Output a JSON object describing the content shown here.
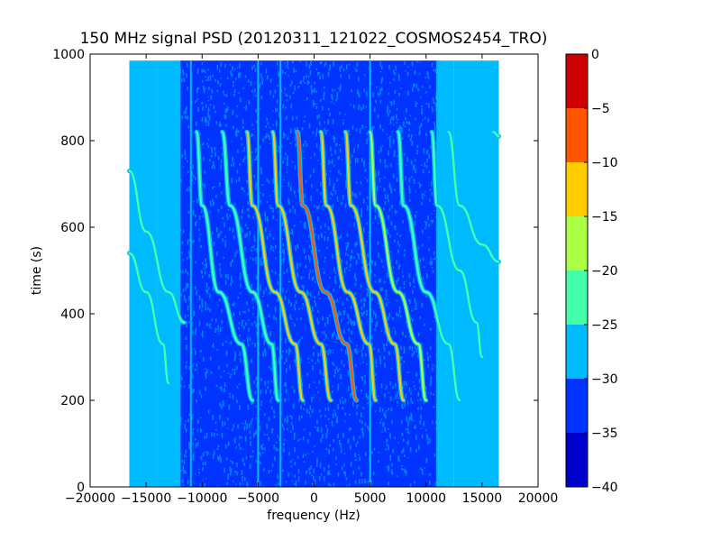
{
  "chart_data": {
    "type": "heatmap",
    "title": "150 MHz signal PSD (20120311_121022_COSMOS2454_TRO)",
    "xlabel": "frequency (Hz)",
    "ylabel": "time (s)",
    "xlim": [
      -20000,
      20000
    ],
    "ylim": [
      0,
      1000
    ],
    "xticks": [
      -20000,
      -15000,
      -10000,
      -5000,
      0,
      5000,
      10000,
      15000,
      20000
    ],
    "xtick_labels": [
      "−20000",
      "−15000",
      "−10000",
      "−5000",
      "0",
      "5000",
      "10000",
      "15000",
      "20000"
    ],
    "yticks": [
      0,
      200,
      400,
      600,
      800,
      1000
    ],
    "ytick_labels": [
      "0",
      "200",
      "400",
      "600",
      "800",
      "1000"
    ],
    "data_extent": {
      "x": [
        -16500,
        16500
      ],
      "y": [
        0,
        985
      ]
    },
    "colorbar": {
      "min": -40,
      "max": 0,
      "ticks": [
        0,
        -5,
        -10,
        -15,
        -20,
        -25,
        -30,
        -35,
        -40
      ],
      "tick_labels": [
        "0",
        "−5",
        "−10",
        "−15",
        "−20",
        "−25",
        "−30",
        "−35",
        "−40"
      ],
      "bands": [
        {
          "from": -40,
          "to": -35,
          "color": "#0000cc"
        },
        {
          "from": -35,
          "to": -30,
          "color": "#0033ff"
        },
        {
          "from": -30,
          "to": -25,
          "color": "#00bbff"
        },
        {
          "from": -25,
          "to": -20,
          "color": "#44ffaa"
        },
        {
          "from": -20,
          "to": -15,
          "color": "#aaff44"
        },
        {
          "from": -15,
          "to": -10,
          "color": "#ffcc00"
        },
        {
          "from": -10,
          "to": -5,
          "color": "#ff5500"
        },
        {
          "from": -5,
          "to": 0,
          "color": "#cc0000"
        }
      ]
    },
    "background_level": [
      {
        "x_from": -16500,
        "x_to": -14000,
        "value": -27
      },
      {
        "x_from": -14000,
        "x_to": -12000,
        "value": -28
      },
      {
        "x_from": -12000,
        "x_to": 11000,
        "value": -33
      },
      {
        "x_from": 11000,
        "x_to": 12500,
        "value": -29
      },
      {
        "x_from": 12500,
        "x_to": 16500,
        "value": -27
      }
    ],
    "vertical_lines_hz": [
      -12000,
      -11000,
      -5000,
      -3000,
      5000,
      11000
    ],
    "series": [
      {
        "points": [
          [
            -16500,
            730
          ],
          [
            -15000,
            590
          ],
          [
            -13000,
            450
          ],
          [
            -11600,
            380
          ]
        ],
        "value": -22
      },
      {
        "points": [
          [
            -16500,
            540
          ],
          [
            -15000,
            450
          ],
          [
            -13500,
            330
          ],
          [
            -13000,
            240
          ]
        ],
        "value": -23
      },
      {
        "points": [
          [
            -10500,
            820
          ],
          [
            -10000,
            650
          ],
          [
            -8500,
            450
          ],
          [
            -6500,
            330
          ],
          [
            -5500,
            200
          ]
        ],
        "value": -21
      },
      {
        "points": [
          [
            -8200,
            820
          ],
          [
            -7500,
            650
          ],
          [
            -5500,
            450
          ],
          [
            -3800,
            330
          ],
          [
            -3200,
            200
          ]
        ],
        "value": -20
      },
      {
        "points": [
          [
            -6000,
            820
          ],
          [
            -5500,
            650
          ],
          [
            -3500,
            450
          ],
          [
            -1700,
            330
          ],
          [
            -1000,
            200
          ]
        ],
        "value": -12
      },
      {
        "points": [
          [
            -3700,
            820
          ],
          [
            -3200,
            650
          ],
          [
            -1200,
            450
          ],
          [
            600,
            330
          ],
          [
            1500,
            200
          ]
        ],
        "value": -13
      },
      {
        "points": [
          [
            -1500,
            820
          ],
          [
            -1000,
            650
          ],
          [
            1000,
            450
          ],
          [
            2900,
            330
          ],
          [
            3800,
            200
          ]
        ],
        "value": -8
      },
      {
        "points": [
          [
            600,
            820
          ],
          [
            1100,
            650
          ],
          [
            3000,
            450
          ],
          [
            4900,
            330
          ],
          [
            5500,
            200
          ]
        ],
        "value": -11
      },
      {
        "points": [
          [
            2800,
            820
          ],
          [
            3300,
            650
          ],
          [
            5400,
            450
          ],
          [
            7200,
            330
          ],
          [
            8000,
            200
          ]
        ],
        "value": -13
      },
      {
        "points": [
          [
            5000,
            820
          ],
          [
            5500,
            650
          ],
          [
            7500,
            450
          ],
          [
            9300,
            330
          ],
          [
            10000,
            200
          ]
        ],
        "value": -16
      },
      {
        "points": [
          [
            7500,
            820
          ],
          [
            8000,
            650
          ],
          [
            10000,
            450
          ],
          [
            12000,
            330
          ],
          [
            13000,
            200
          ]
        ],
        "value": -20
      },
      {
        "points": [
          [
            10500,
            820
          ],
          [
            11000,
            650
          ],
          [
            13000,
            500
          ],
          [
            14500,
            380
          ],
          [
            15000,
            300
          ]
        ],
        "value": -22
      },
      {
        "points": [
          [
            12000,
            820
          ],
          [
            13000,
            650
          ],
          [
            15000,
            560
          ],
          [
            16500,
            520
          ]
        ],
        "value": -22
      },
      {
        "points": [
          [
            16000,
            820
          ],
          [
            16500,
            810
          ]
        ],
        "value": -22
      }
    ]
  }
}
